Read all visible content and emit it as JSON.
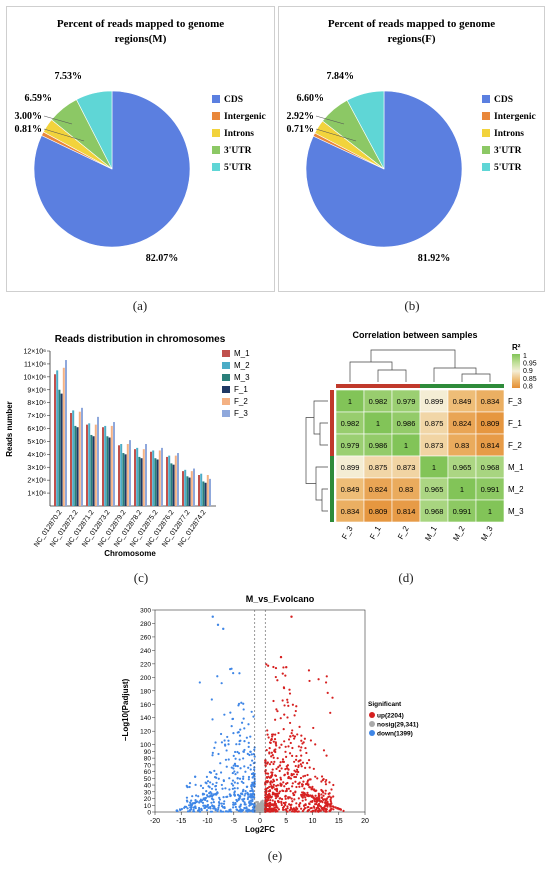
{
  "chart_data": [
    {
      "panel": "(a)",
      "type": "pie",
      "title": "Percent of reads mapped to genome regions(M)",
      "categories": [
        "CDS",
        "Intergenic",
        "Introns",
        "3'UTR",
        "5'UTR"
      ],
      "values": [
        82.07,
        0.81,
        3.0,
        6.59,
        7.53
      ],
      "data_labels": [
        "82.07%",
        "0.81%",
        "3.00%",
        "6.59%",
        "7.53%"
      ],
      "colors": [
        "#5b7fe0",
        "#e9873a",
        "#f2d33c",
        "#8cc865",
        "#5fd6d6"
      ],
      "legend": "right"
    },
    {
      "panel": "(b)",
      "type": "pie",
      "title": "Percent of reads mapped to genome regions(F)",
      "categories": [
        "CDS",
        "Intergenic",
        "Introns",
        "3'UTR",
        "5'UTR"
      ],
      "values": [
        81.92,
        0.71,
        2.92,
        6.6,
        7.84
      ],
      "data_labels": [
        "81.92%",
        "0.71%",
        "2.92%",
        "6.60%",
        "7.84%"
      ],
      "colors": [
        "#5b7fe0",
        "#e9873a",
        "#f2d33c",
        "#8cc865",
        "#5fd6d6"
      ],
      "legend": "right"
    },
    {
      "panel": "(c)",
      "type": "bar",
      "title": "Reads distribution in chromosomes",
      "xlabel": "Chromosome",
      "ylabel": "Reads number",
      "ylim": [
        0,
        12000000
      ],
      "yticks": [
        "1×10⁶",
        "2×10⁶",
        "3×10⁶",
        "4×10⁶",
        "5×10⁶",
        "6×10⁶",
        "7×10⁶",
        "8×10⁶",
        "9×10⁶",
        "10×10⁶",
        "11×10⁶",
        "12×10⁶"
      ],
      "categories": [
        "NC_012870.2",
        "NC_012872.2",
        "NC_012871.2",
        "NC_012873.2",
        "NC_012879.2",
        "NC_012878.2",
        "NC_012875.2",
        "NC_012876.2",
        "NC_012877.2",
        "NC_012874.2"
      ],
      "series": [
        {
          "name": "M_1",
          "color": "#c0504d",
          "values": [
            10200000,
            7200000,
            6300000,
            6100000,
            4700000,
            4400000,
            4200000,
            3800000,
            2700000,
            2400000
          ]
        },
        {
          "name": "M_2",
          "color": "#4bacc6",
          "values": [
            10500000,
            7400000,
            6400000,
            6200000,
            4800000,
            4500000,
            4300000,
            3900000,
            2800000,
            2500000
          ]
        },
        {
          "name": "M_3",
          "color": "#2a7f7a",
          "values": [
            9000000,
            6200000,
            5500000,
            5400000,
            4100000,
            3800000,
            3700000,
            3300000,
            2300000,
            1900000
          ]
        },
        {
          "name": "F_1",
          "color": "#1f3864",
          "values": [
            8700000,
            6100000,
            5400000,
            5300000,
            4000000,
            3700000,
            3600000,
            3200000,
            2200000,
            1800000
          ]
        },
        {
          "name": "F_2",
          "color": "#f4b183",
          "values": [
            10700000,
            7300000,
            6300000,
            6200000,
            4800000,
            4400000,
            4300000,
            3900000,
            2700000,
            2400000
          ]
        },
        {
          "name": "F_3",
          "color": "#8fa8dc",
          "values": [
            11300000,
            7600000,
            6900000,
            6500000,
            5100000,
            4800000,
            4500000,
            4100000,
            2900000,
            2100000
          ]
        }
      ],
      "legend": "top-right"
    },
    {
      "panel": "(d)",
      "type": "heatmap",
      "title": "Correlation between samples",
      "legend_title": "R²",
      "legend_ticks": [
        "1",
        "0.95",
        "0.9",
        "0.85",
        "0.8"
      ],
      "col_labels": [
        "F_3",
        "F_1",
        "F_2",
        "M_1",
        "M_2",
        "M_3"
      ],
      "row_labels": [
        "F_3",
        "F_1",
        "F_2",
        "M_1",
        "M_2",
        "M_3"
      ],
      "matrix": [
        [
          1,
          0.982,
          0.979,
          0.899,
          0.849,
          0.834
        ],
        [
          0.982,
          1,
          0.986,
          0.875,
          0.824,
          0.809
        ],
        [
          0.979,
          0.986,
          1,
          0.873,
          0.83,
          0.814
        ],
        [
          0.899,
          0.875,
          0.873,
          1,
          0.965,
          0.968
        ],
        [
          0.849,
          0.824,
          0.83,
          0.965,
          1,
          0.991
        ],
        [
          0.834,
          0.809,
          0.814,
          0.968,
          0.991,
          1
        ]
      ]
    },
    {
      "panel": "(e)",
      "type": "scatter",
      "title": "M_vs_F.volcano",
      "xlabel": "Log2FC",
      "ylabel": "−Log10(Padjust)",
      "xlim": [
        -20,
        20
      ],
      "ylim": [
        0,
        300
      ],
      "xticks": [
        -20,
        -15,
        -10,
        -5,
        0,
        5,
        10,
        15,
        20
      ],
      "yticks": [
        0,
        10,
        20,
        30,
        40,
        50,
        60,
        70,
        80,
        90,
        100,
        120,
        140,
        160,
        180,
        200,
        220,
        240,
        260,
        280,
        300
      ],
      "threshold_lines_x": [
        -1,
        1
      ],
      "legend_title": "Significant",
      "series": [
        {
          "name": "up(2204)",
          "color": "#d62020"
        },
        {
          "name": "nosig(29,341)",
          "color": "#a9a9a9"
        },
        {
          "name": "down(1399)",
          "color": "#3f86e6"
        }
      ],
      "legend": "right"
    }
  ],
  "captions": {
    "a": "(a)",
    "b": "(b)",
    "c": "(c)",
    "d": "(d)",
    "e": "(e)"
  }
}
